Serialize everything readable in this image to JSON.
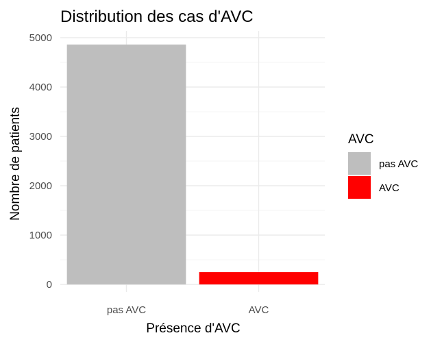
{
  "chart_data": {
    "type": "bar",
    "title": "Distribution des cas d'AVC",
    "xlabel": "Présence d'AVC",
    "ylabel": "Nombre de patients",
    "categories": [
      "pas AVC",
      "AVC"
    ],
    "values": [
      4861,
      249
    ],
    "colors": [
      "#bebebe",
      "#ff0000"
    ],
    "ylim": [
      0,
      5110
    ],
    "yticks": [
      0,
      1000,
      2000,
      3000,
      4000,
      5000
    ],
    "ytick_labels": [
      "0",
      "1000",
      "2000",
      "3000",
      "4000",
      "5000"
    ],
    "grid": true,
    "legend": {
      "title": "AVC",
      "position": "right",
      "entries": [
        {
          "label": "pas AVC",
          "color": "#bebebe"
        },
        {
          "label": "AVC",
          "color": "#ff0000"
        }
      ]
    }
  }
}
